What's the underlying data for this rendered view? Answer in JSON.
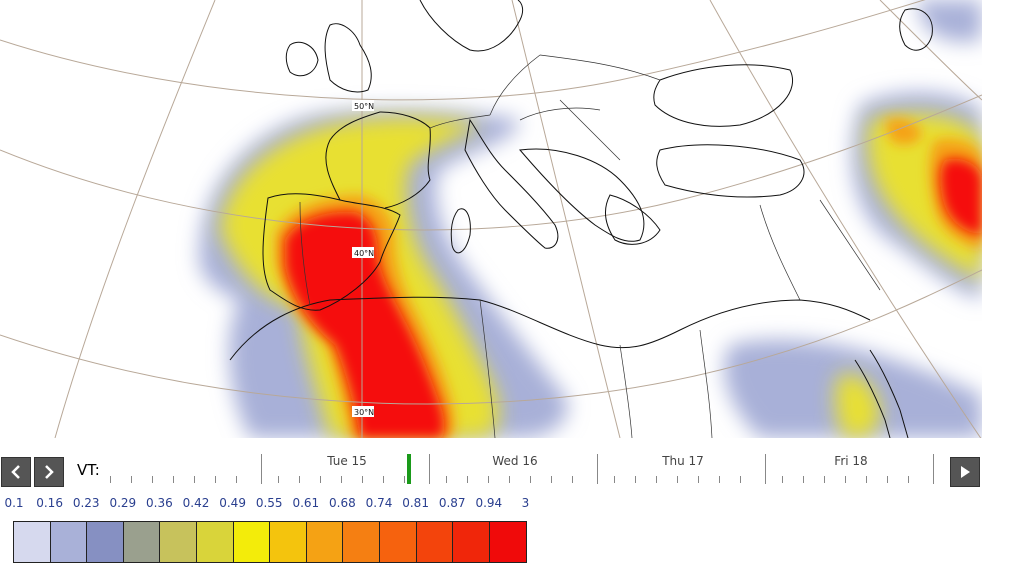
{
  "map": {
    "latitude_labels": [
      "50°N",
      "40°N",
      "30°N"
    ]
  },
  "timeline": {
    "vt_label": "VT:",
    "days": [
      "Tue 15",
      "Wed 16",
      "Thu 17",
      "Fri 18"
    ],
    "current_marker_color": "#1a9a1a"
  },
  "legend": {
    "values": [
      "0.1",
      "0.16",
      "0.23",
      "0.29",
      "0.36",
      "0.42",
      "0.49",
      "0.55",
      "0.61",
      "0.68",
      "0.74",
      "0.81",
      "0.87",
      "0.94",
      "3"
    ],
    "colors": [
      "#d6d9ee",
      "#a9b1d8",
      "#8690c2",
      "#9aa08e",
      "#c7c25c",
      "#d9d43a",
      "#f3ec0a",
      "#f4c40d",
      "#f5a214",
      "#f57f12",
      "#f6620e",
      "#f3440c",
      "#f0260a",
      "#f00a0a"
    ]
  },
  "icons": {
    "prev": "chevron-left-icon",
    "next": "chevron-right-icon",
    "play": "play-icon"
  }
}
